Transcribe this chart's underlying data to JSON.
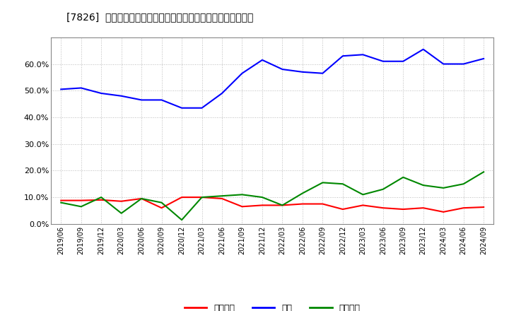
{
  "title": "[7826]  売上債権、在庫、買入債務の総資産に対する比率の推移",
  "x_labels": [
    "2019/06",
    "2019/09",
    "2019/12",
    "2020/03",
    "2020/06",
    "2020/09",
    "2020/12",
    "2021/03",
    "2021/06",
    "2021/09",
    "2021/12",
    "2022/03",
    "2022/06",
    "2022/09",
    "2022/12",
    "2023/03",
    "2023/06",
    "2023/09",
    "2023/12",
    "2024/03",
    "2024/06",
    "2024/09"
  ],
  "receivables": [
    0.088,
    0.088,
    0.09,
    0.085,
    0.095,
    0.06,
    0.1,
    0.1,
    0.095,
    0.065,
    0.07,
    0.07,
    0.075,
    0.075,
    0.055,
    0.07,
    0.06,
    0.055,
    0.06,
    0.045,
    0.06,
    0.063
  ],
  "inventory": [
    0.505,
    0.51,
    0.49,
    0.48,
    0.465,
    0.465,
    0.435,
    0.435,
    0.49,
    0.565,
    0.615,
    0.58,
    0.57,
    0.565,
    0.63,
    0.635,
    0.61,
    0.61,
    0.655,
    0.6,
    0.6,
    0.62
  ],
  "payables": [
    0.08,
    0.065,
    0.1,
    0.04,
    0.095,
    0.08,
    0.015,
    0.1,
    0.105,
    0.11,
    0.1,
    0.07,
    0.115,
    0.155,
    0.15,
    0.11,
    0.13,
    0.175,
    0.145,
    0.135,
    0.15,
    0.195
  ],
  "receivables_color": "#ff0000",
  "inventory_color": "#0000ff",
  "payables_color": "#008800",
  "legend_labels": [
    "売上債権",
    "在庫",
    "買入債務"
  ],
  "ylim": [
    0.0,
    0.7
  ],
  "yticks": [
    0.0,
    0.1,
    0.2,
    0.3,
    0.4,
    0.5,
    0.6
  ],
  "background_color": "#ffffff",
  "grid_color": "#bbbbbb"
}
